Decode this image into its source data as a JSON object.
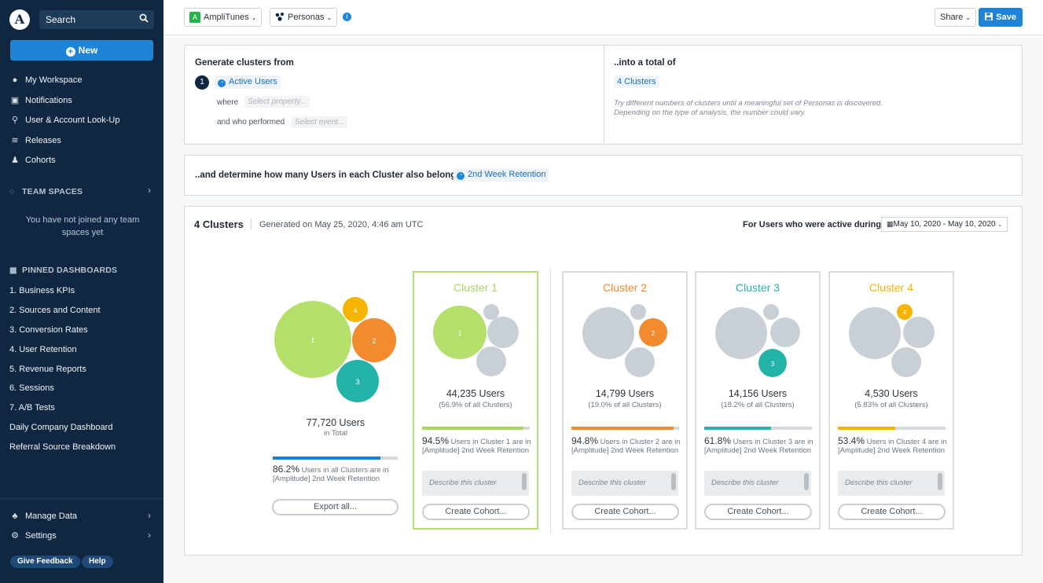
{
  "sidebar": {
    "logo": "A",
    "search_label": "Search",
    "new_label": "New",
    "nav": [
      {
        "label": "My Workspace",
        "icon": "person-icon"
      },
      {
        "label": "Notifications",
        "icon": "inbox-icon"
      },
      {
        "label": "User & Account Look-Up",
        "icon": "user-lookup-icon"
      },
      {
        "label": "Releases",
        "icon": "releases-icon"
      },
      {
        "label": "Cohorts",
        "icon": "cohorts-icon"
      }
    ],
    "team_spaces_label": "TEAM SPACES",
    "team_spaces_empty": "You have not joined any team spaces yet",
    "pinned_label": "PINNED DASHBOARDS",
    "pinned": [
      "1. Business KPIs",
      "2. Sources and Content",
      "3. Conversion Rates",
      "4. User Retention",
      "5. Revenue Reports",
      "6. Sessions",
      "7. A/B Tests",
      "Daily Company Dashboard",
      "Referral Source Breakdown"
    ],
    "manage_data": "Manage Data",
    "settings": "Settings",
    "feedback": "Give Feedback",
    "help": "Help"
  },
  "topbar": {
    "app_badge": "A",
    "app_name": "AmpliTunes",
    "chart_type": "Personas",
    "info": "i",
    "share": "Share",
    "save": "Save"
  },
  "config": {
    "generate_label": "Generate clusters from",
    "step": "1",
    "event": "Active Users",
    "where_label": "where",
    "where_placeholder": "Select property...",
    "performed_label": "and who performed",
    "performed_placeholder": "Select event...",
    "total_label": "..into a total of",
    "clusters_value": "4 Clusters",
    "hint_line1": "Try different numbers of clusters until a meaningful set of Personas is discovered.",
    "hint_line2": "Depending on the type of analysis, the number could vary.",
    "determine_label": "..and determine how many Users in each Cluster also belong to",
    "retention_event": "2nd Week Retention"
  },
  "results": {
    "title": "4 Clusters",
    "generated": "Generated on May 25, 2020, 4:46 am UTC",
    "active_label": "For Users who were active during",
    "date_range": "May 10, 2020 - May 10, 2020",
    "total_users": "77,720 Users",
    "total_sub": "in Total",
    "total_pct": "86.2%",
    "total_pct_value": 0.862,
    "total_ret_text": "Users in all Clusters are in [Amplitude] 2nd Week Retention",
    "export_label": "Export all...",
    "overview_bubbles": [
      "1",
      "2",
      "3",
      "4"
    ],
    "clusters": [
      {
        "title": "Cluster 1",
        "color": "#a8d660",
        "users": "44,235 Users",
        "pct": "(56.9% of all Clusters)",
        "ret": "94.5%",
        "ret_value": 0.945,
        "ret_text": "Users in Cluster 1 are in [Amplitude] 2nd Week Retention",
        "describe": "Describe this cluster",
        "cohort": "Create Cohort...",
        "bubble": "1"
      },
      {
        "title": "Cluster 2",
        "color": "#f28a2e",
        "users": "14,799 Users",
        "pct": "(19.0% of all Clusters)",
        "ret": "94.8%",
        "ret_value": 0.948,
        "ret_text": "Users in Cluster 2 are in [Amplitude] 2nd Week Retention",
        "describe": "Describe this cluster",
        "cohort": "Create Cohort...",
        "bubble": "2"
      },
      {
        "title": "Cluster 3",
        "color": "#24b3a8",
        "users": "14,156 Users",
        "pct": "(18.2% of all Clusters)",
        "ret": "61.8%",
        "ret_value": 0.618,
        "ret_text": "Users in Cluster 3 are in [Amplitude] 2nd Week Retention",
        "describe": "Describe this cluster",
        "cohort": "Create Cohort...",
        "bubble": "3"
      },
      {
        "title": "Cluster 4",
        "color": "#f5b400",
        "users": "4,530 Users",
        "pct": "(5.83% of all Clusters)",
        "ret": "53.4%",
        "ret_value": 0.534,
        "ret_text": "Users in Cluster 4 are in [Amplitude] 2nd Week Retention",
        "describe": "Describe this cluster",
        "cohort": "Create Cohort...",
        "bubble": "4"
      }
    ]
  },
  "colors": {
    "sidebar_bg": "#0f2741",
    "accent": "#1d84d8",
    "bubble_gray": "#c8cfd6",
    "total_bar": "#1b7fd0"
  }
}
